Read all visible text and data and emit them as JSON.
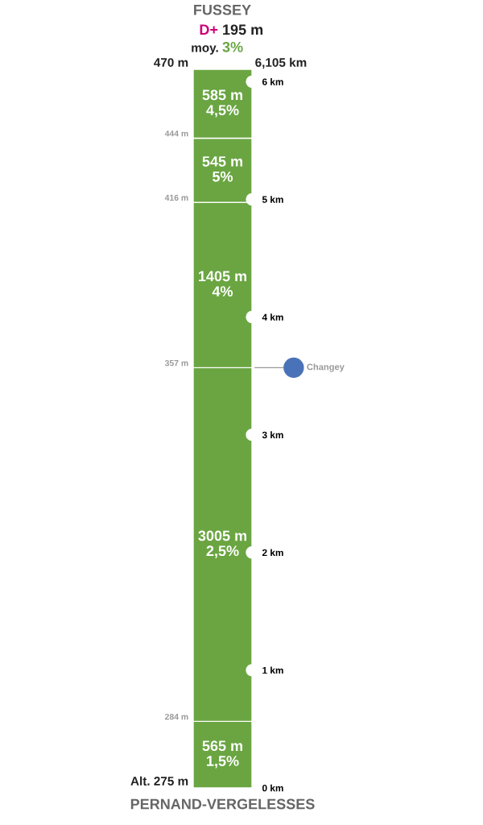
{
  "chart_data": {
    "type": "bar",
    "title": "FUSSEY",
    "subtitle": "D+ 195 m",
    "xlabel": "PERNAND-VERGELESSES",
    "categories": [
      null
    ],
    "stacked": true,
    "ylim": [
      0,
      6.105
    ],
    "yticks": [
      {
        "value": 0,
        "label": "0 km"
      },
      {
        "value": 1,
        "label": "1 km"
      },
      {
        "value": 2,
        "label": "2 km"
      },
      {
        "value": 3,
        "label": "3 km"
      },
      {
        "value": 4,
        "label": "4 km"
      },
      {
        "value": 5,
        "label": "5 km"
      },
      {
        "value": 6,
        "label": "6 km"
      }
    ],
    "y2lim": [
      0,
      6105
    ],
    "series": [
      {
        "color": "#6aa542",
        "axis": "y2",
        "values": [
          565
        ],
        "value_labels": [
          "565 m\n1,5%"
        ]
      },
      {
        "color": "#6aa542",
        "axis": "y2",
        "values": [
          3005
        ],
        "value_labels": [
          "3005 m\n2,5%"
        ]
      },
      {
        "color": "#6aa542",
        "axis": "y2",
        "values": [
          1405
        ],
        "value_labels": [
          "1405 m\n4%"
        ]
      },
      {
        "color": "#6aa542",
        "axis": "y2",
        "values": [
          545
        ],
        "value_labels": [
          "545 m\n5%"
        ]
      },
      {
        "color": "#6aa542",
        "axis": "y2",
        "values": [
          585
        ],
        "value_labels": [
          "585 m\n4,5%"
        ]
      }
    ],
    "ref_lines": [
      {
        "axis": "y2",
        "value": 3570,
        "label": "Changey",
        "color": "#999999"
      }
    ],
    "annotations": [
      "moy. 3%",
      "6,105 km",
      "Alt. 275 m",
      "284 m",
      "357 m",
      "416 m",
      "444 m",
      "470 m"
    ],
    "grid": false
  }
}
